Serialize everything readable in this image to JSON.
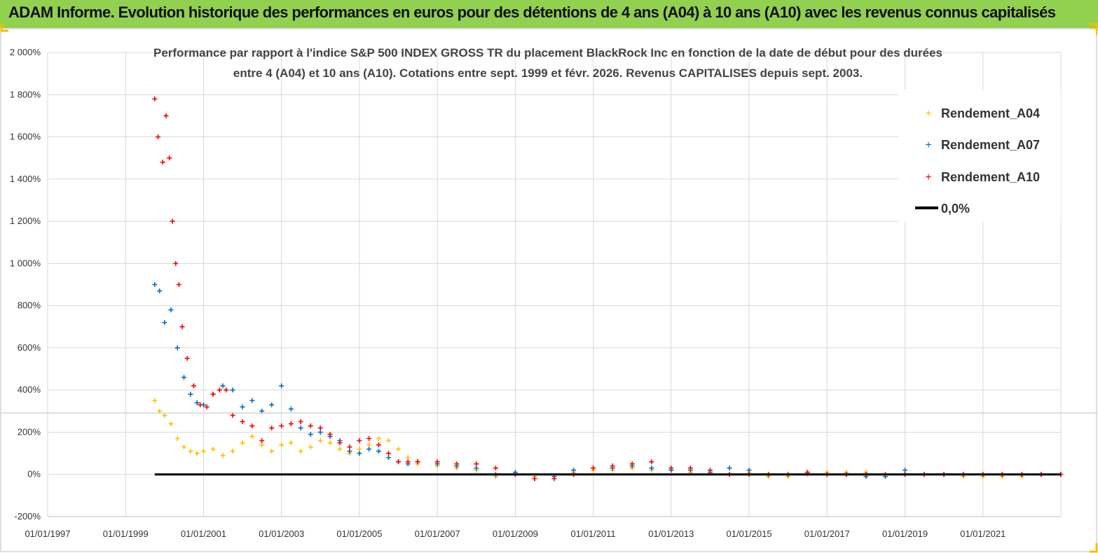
{
  "header": {
    "title": "ADAM Informe. Evolution historique des performances en euros pour des détentions de 4 ans (A04) à 10 ans (A10) avec les revenus connus capitalisés",
    "background": "#92d050"
  },
  "chart_data": {
    "type": "scatter",
    "title_line1": "Performance par rapport à l'indice S&P 500 INDEX GROSS TR  du placement BlackRock Inc en fonction de la date de début pour des durées",
    "title_line2": "entre 4 (A04) et 10 ans (A10).  Cotations entre sept. 1999 et févr. 2026.  Revenus CAPITALISES depuis sept. 2003.",
    "xlim": [
      "1997-01-01",
      "2023-01-01"
    ],
    "ylim": [
      -200,
      2000
    ],
    "y_unit": "%",
    "ytick_labels": [
      "-200%",
      "0%",
      "200%",
      "400%",
      "600%",
      "800%",
      "1 000%",
      "1 200%",
      "1 400%",
      "1 600%",
      "1 800%",
      "2 000%"
    ],
    "ytick_values": [
      -200,
      0,
      200,
      400,
      600,
      800,
      1000,
      1200,
      1400,
      1600,
      1800,
      2000
    ],
    "xtick_labels": [
      "01/01/1997",
      "01/01/1999",
      "01/01/2001",
      "01/01/2003",
      "01/01/2005",
      "01/01/2007",
      "01/01/2009",
      "01/01/2011",
      "01/01/2013",
      "01/01/2015",
      "01/01/2017",
      "01/01/2019",
      "01/01/2021"
    ],
    "xtick_values": [
      1997,
      1999,
      2001,
      2003,
      2005,
      2007,
      2009,
      2011,
      2013,
      2015,
      2017,
      2019,
      2021
    ],
    "grid": true,
    "legend_position": "top-right",
    "legend": [
      "Rendement_A04",
      "Rendement_A07",
      "Rendement_A10",
      "0,0%"
    ],
    "reference_line": {
      "name": "0,0%",
      "y": 0,
      "x_start": "1999-10-01",
      "x_end": "2022-12-31",
      "color": "#000000"
    },
    "series": [
      {
        "name": "Rendement_A04",
        "color": "#ffc000",
        "x": [
          "1999-10-01",
          "1999-11-15",
          "2000-01-01",
          "2000-03-01",
          "2000-05-01",
          "2000-07-01",
          "2000-09-01",
          "2000-11-01",
          "2001-01-01",
          "2001-04-01",
          "2001-07-01",
          "2001-10-01",
          "2002-01-01",
          "2002-04-01",
          "2002-07-01",
          "2002-10-01",
          "2003-01-01",
          "2003-04-01",
          "2003-07-01",
          "2003-10-01",
          "2004-01-01",
          "2004-04-01",
          "2004-07-01",
          "2004-10-01",
          "2005-01-01",
          "2005-04-01",
          "2005-07-01",
          "2005-10-01",
          "2006-01-01",
          "2006-04-01",
          "2006-07-01",
          "2007-01-01",
          "2007-07-01",
          "2008-01-01",
          "2008-07-01",
          "2009-01-01",
          "2009-07-01",
          "2010-01-01",
          "2010-07-01",
          "2011-01-01",
          "2011-07-01",
          "2012-01-01",
          "2012-07-01",
          "2013-01-01",
          "2013-07-01",
          "2014-01-01",
          "2014-07-01",
          "2015-01-01",
          "2015-07-01",
          "2016-01-01",
          "2016-07-01",
          "2017-01-01",
          "2017-07-01",
          "2018-01-01",
          "2018-07-01",
          "2019-01-01",
          "2019-07-01",
          "2020-01-01",
          "2020-07-01",
          "2021-01-01",
          "2021-07-01",
          "2022-01-01",
          "2022-07-01",
          "2022-12-31"
        ],
        "y": [
          350,
          300,
          280,
          240,
          170,
          130,
          110,
          100,
          110,
          120,
          90,
          110,
          150,
          180,
          140,
          110,
          140,
          150,
          110,
          130,
          160,
          150,
          120,
          100,
          120,
          140,
          170,
          160,
          120,
          80,
          50,
          40,
          30,
          20,
          -10,
          0,
          -10,
          -10,
          10,
          20,
          20,
          30,
          20,
          20,
          10,
          10,
          0,
          10,
          -10,
          -10,
          0,
          10,
          10,
          10,
          0,
          0,
          0,
          0,
          -10,
          -10,
          -10,
          -10,
          0,
          0
        ]
      },
      {
        "name": "Rendement_A07",
        "color": "#0070c0",
        "x": [
          "1999-10-01",
          "1999-11-15",
          "2000-01-01",
          "2000-03-01",
          "2000-05-01",
          "2000-07-01",
          "2000-09-01",
          "2000-11-01",
          "2001-01-01",
          "2001-04-01",
          "2001-07-01",
          "2001-10-01",
          "2002-01-01",
          "2002-04-01",
          "2002-07-01",
          "2002-10-01",
          "2003-01-01",
          "2003-04-01",
          "2003-07-01",
          "2003-10-01",
          "2004-01-01",
          "2004-04-01",
          "2004-07-01",
          "2004-10-01",
          "2005-01-01",
          "2005-04-01",
          "2005-07-01",
          "2005-10-01",
          "2006-01-01",
          "2006-04-01",
          "2006-07-01",
          "2007-01-01",
          "2007-07-01",
          "2008-01-01",
          "2008-07-01",
          "2009-01-01",
          "2009-07-01",
          "2010-01-01",
          "2010-07-01",
          "2011-01-01",
          "2011-07-01",
          "2012-01-01",
          "2012-07-01",
          "2013-01-01",
          "2013-07-01",
          "2014-01-01",
          "2014-07-01",
          "2015-01-01",
          "2015-07-01",
          "2016-01-01",
          "2016-07-01",
          "2017-01-01",
          "2017-07-01",
          "2018-01-01",
          "2018-07-01",
          "2019-01-01",
          "2019-07-01",
          "2020-01-01",
          "2020-07-01",
          "2021-01-01",
          "2021-07-01",
          "2022-01-01",
          "2022-07-01",
          "2022-12-31"
        ],
        "y": [
          900,
          870,
          720,
          780,
          600,
          460,
          380,
          340,
          330,
          380,
          420,
          400,
          320,
          350,
          300,
          330,
          420,
          310,
          220,
          190,
          200,
          180,
          160,
          110,
          100,
          120,
          110,
          80,
          60,
          50,
          60,
          50,
          40,
          30,
          0,
          10,
          -20,
          -10,
          20,
          30,
          30,
          40,
          30,
          20,
          20,
          10,
          30,
          20,
          0,
          0,
          10,
          0,
          0,
          -10,
          -10,
          20,
          0,
          0,
          0,
          0,
          0,
          0,
          0,
          0
        ]
      },
      {
        "name": "Rendement_A10",
        "color": "#ff0000",
        "x": [
          "1999-10-01",
          "1999-11-01",
          "1999-12-15",
          "2000-01-15",
          "2000-02-15",
          "2000-03-15",
          "2000-04-15",
          "2000-05-15",
          "2000-06-15",
          "2000-08-01",
          "2000-10-01",
          "2000-12-01",
          "2001-02-01",
          "2001-04-01",
          "2001-06-01",
          "2001-08-01",
          "2001-10-01",
          "2002-01-01",
          "2002-04-01",
          "2002-07-01",
          "2002-10-01",
          "2003-01-01",
          "2003-04-01",
          "2003-07-01",
          "2003-10-01",
          "2004-01-01",
          "2004-04-01",
          "2004-07-01",
          "2004-10-01",
          "2005-01-01",
          "2005-04-01",
          "2005-07-01",
          "2005-10-01",
          "2006-01-01",
          "2006-04-01",
          "2006-07-01",
          "2007-01-01",
          "2007-07-01",
          "2008-01-01",
          "2008-07-01",
          "2009-01-01",
          "2009-07-01",
          "2010-01-01",
          "2010-07-01",
          "2011-01-01",
          "2011-07-01",
          "2012-01-01",
          "2012-07-01",
          "2013-01-01",
          "2013-07-01",
          "2014-01-01",
          "2014-07-01",
          "2015-01-01",
          "2015-07-01",
          "2016-01-01",
          "2016-07-01",
          "2017-01-01",
          "2017-07-01",
          "2018-01-01",
          "2018-07-01",
          "2019-01-01",
          "2019-07-01",
          "2020-01-01",
          "2020-07-01",
          "2021-01-01",
          "2021-07-01",
          "2022-01-01",
          "2022-07-01",
          "2022-12-31"
        ],
        "y": [
          1780,
          1600,
          1480,
          1700,
          1500,
          1200,
          1000,
          900,
          700,
          550,
          420,
          330,
          320,
          380,
          400,
          400,
          280,
          250,
          230,
          160,
          220,
          230,
          240,
          250,
          230,
          220,
          190,
          150,
          130,
          160,
          170,
          140,
          100,
          60,
          60,
          60,
          60,
          50,
          50,
          30,
          0,
          -20,
          -20,
          0,
          30,
          40,
          50,
          60,
          30,
          30,
          20,
          0,
          0,
          0,
          0,
          10,
          0,
          0,
          0,
          0,
          0,
          0,
          0,
          0,
          0,
          0,
          0,
          0,
          0
        ]
      }
    ]
  }
}
